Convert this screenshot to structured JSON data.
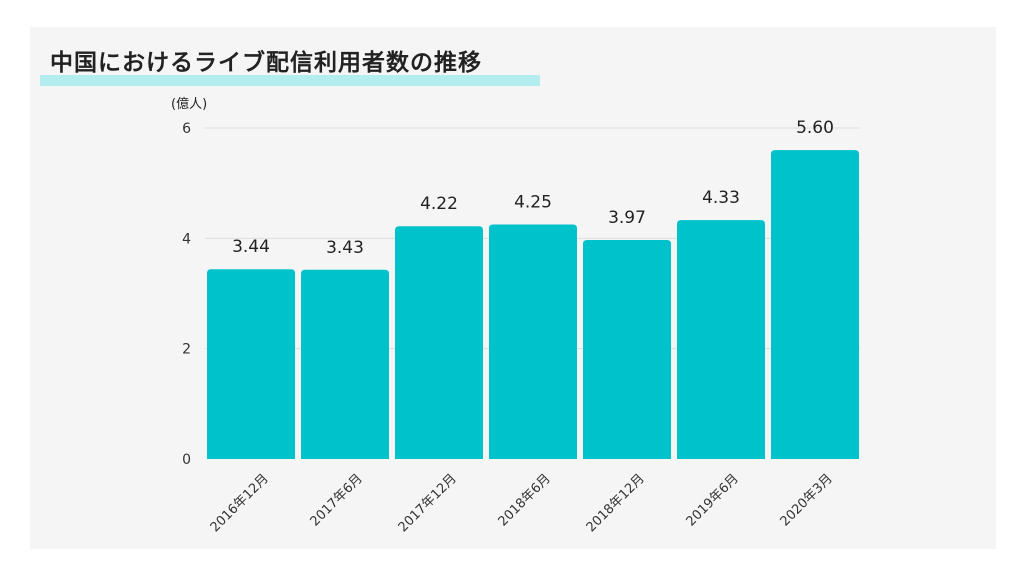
{
  "title": "中国におけるライブ配信利用者数の推移",
  "colors": {
    "bar": "#00c2cb",
    "title_highlight": "#b3edf0",
    "card_bg": "#f5f5f5",
    "gridline": "#dddddd",
    "text": "#222222",
    "axis_text": "#333333"
  },
  "chart_data": {
    "type": "bar",
    "title": "中国におけるライブ配信利用者数の推移",
    "xlabel": "",
    "ylabel": "(億人)",
    "categories": [
      "2016年12月",
      "2017年6月",
      "2017年12月",
      "2018年6月",
      "2018年12月",
      "2019年6月",
      "2020年3月"
    ],
    "values": [
      3.44,
      3.43,
      4.22,
      4.25,
      3.97,
      4.33,
      5.6
    ],
    "value_labels": [
      "3.44",
      "3.43",
      "4.22",
      "4.25",
      "3.97",
      "4.33",
      "5.60"
    ],
    "ylim": [
      0,
      6
    ],
    "yticks": [
      0,
      2,
      4,
      6
    ],
    "ytick_labels": [
      "0",
      "2",
      "4",
      "6"
    ],
    "grid": true,
    "legend": "none"
  }
}
